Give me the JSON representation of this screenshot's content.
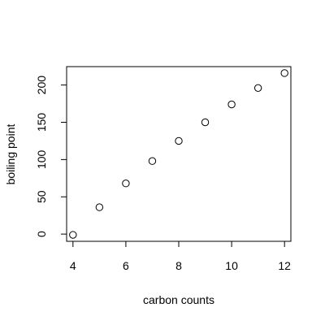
{
  "chart_data": {
    "type": "scatter",
    "x": [
      4,
      5,
      6,
      7,
      8,
      9,
      10,
      11,
      12
    ],
    "y": [
      -1,
      36,
      68,
      98,
      125,
      150,
      174,
      196,
      216
    ],
    "xlabel": "carbon counts",
    "ylabel": "boiling point",
    "xlim": [
      3.76,
      12.24
    ],
    "ylim": [
      -9.68,
      224.68
    ],
    "xticks": [
      4,
      6,
      8,
      10,
      12
    ],
    "yticks": [
      0,
      50,
      100,
      150,
      200
    ],
    "grid": false,
    "marker": "open-circle",
    "colors": {
      "marker": "#000000",
      "axis": "#000000",
      "background": "#ffffff"
    }
  }
}
